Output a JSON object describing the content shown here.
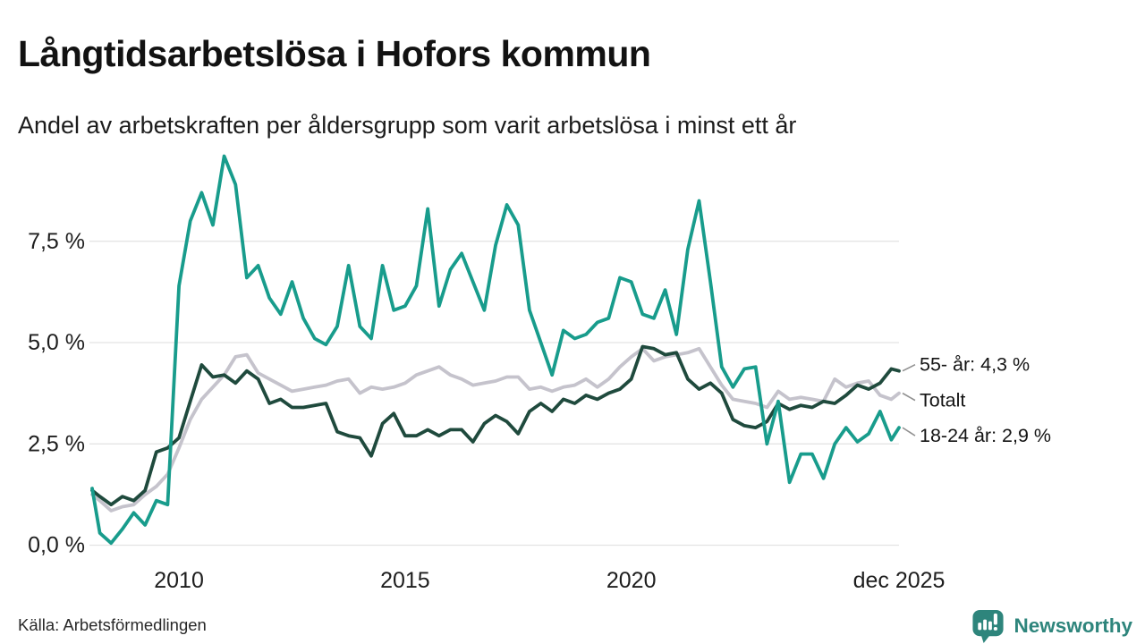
{
  "chart_data": {
    "type": "line",
    "title": "Långtidsarbetslösa i Hofors kommun",
    "subtitle": "Andel av arbetskraften per åldersgrupp som varit arbetslösa i minst ett år",
    "xlabel": "",
    "ylabel": "",
    "grid": true,
    "legend_position": "end-of-line-labels-right",
    "xlim": [
      2008.08,
      2025.92
    ],
    "ylim": [
      0,
      9.9
    ],
    "y_ticks": [
      {
        "value": 0,
        "label": "0,0 %"
      },
      {
        "value": 2.5,
        "label": "2,5 %"
      },
      {
        "value": 5,
        "label": "5,0 %"
      },
      {
        "value": 7.5,
        "label": "7,5 %"
      }
    ],
    "x_ticks": [
      {
        "pos": 2010,
        "label": "2010"
      },
      {
        "pos": 2015,
        "label": "2015"
      },
      {
        "pos": 2020,
        "label": "2020"
      },
      {
        "pos": 2025.92,
        "label": "dec 2025"
      }
    ],
    "x": [
      2008.08,
      2008.25,
      2008.5,
      2008.75,
      2009,
      2009.25,
      2009.5,
      2009.75,
      2010,
      2010.25,
      2010.5,
      2010.75,
      2011,
      2011.25,
      2011.5,
      2011.75,
      2012,
      2012.25,
      2012.5,
      2012.75,
      2013,
      2013.25,
      2013.5,
      2013.75,
      2014,
      2014.25,
      2014.5,
      2014.75,
      2015,
      2015.25,
      2015.5,
      2015.75,
      2016,
      2016.25,
      2016.5,
      2016.75,
      2017,
      2017.25,
      2017.5,
      2017.75,
      2018,
      2018.25,
      2018.5,
      2018.75,
      2019,
      2019.25,
      2019.5,
      2019.75,
      2020,
      2020.25,
      2020.5,
      2020.75,
      2021,
      2021.25,
      2021.5,
      2021.75,
      2022,
      2022.25,
      2022.5,
      2022.75,
      2023,
      2023.25,
      2023.5,
      2023.75,
      2024,
      2024.25,
      2024.5,
      2024.75,
      2025,
      2025.25,
      2025.5,
      2025.75,
      2025.92
    ],
    "series": [
      {
        "name": "Totalt",
        "end_label": "Totalt",
        "end_value": 3.75,
        "color": "#c5c3cc",
        "values": [
          1.25,
          1.1,
          0.85,
          0.95,
          1.0,
          1.25,
          1.45,
          1.75,
          2.4,
          3.1,
          3.6,
          3.9,
          4.2,
          4.65,
          4.7,
          4.25,
          4.1,
          3.95,
          3.8,
          3.85,
          3.9,
          3.95,
          4.05,
          4.1,
          3.75,
          3.9,
          3.85,
          3.9,
          4.0,
          4.2,
          4.3,
          4.4,
          4.2,
          4.1,
          3.95,
          4.0,
          4.05,
          4.15,
          4.15,
          3.85,
          3.9,
          3.8,
          3.9,
          3.95,
          4.1,
          3.9,
          4.1,
          4.4,
          4.65,
          4.85,
          4.55,
          4.65,
          4.7,
          4.75,
          4.85,
          4.4,
          3.95,
          3.6,
          3.55,
          3.5,
          3.4,
          3.8,
          3.6,
          3.65,
          3.6,
          3.55,
          4.1,
          3.9,
          4.0,
          4.05,
          3.7,
          3.6,
          3.75
        ]
      },
      {
        "name": "55- år",
        "end_label": "55- år: 4,3 %",
        "end_value": 4.3,
        "color": "#1f4a3d",
        "values": [
          1.35,
          1.2,
          1.0,
          1.2,
          1.1,
          1.35,
          2.3,
          2.4,
          2.65,
          3.55,
          4.45,
          4.15,
          4.2,
          4.0,
          4.3,
          4.1,
          3.5,
          3.6,
          3.4,
          3.4,
          3.45,
          3.5,
          2.8,
          2.7,
          2.65,
          2.2,
          3.0,
          3.25,
          2.7,
          2.7,
          2.85,
          2.7,
          2.85,
          2.85,
          2.55,
          3.0,
          3.2,
          3.05,
          2.75,
          3.3,
          3.5,
          3.3,
          3.6,
          3.5,
          3.7,
          3.6,
          3.75,
          3.85,
          4.1,
          4.9,
          4.85,
          4.7,
          4.75,
          4.1,
          3.85,
          4.0,
          3.75,
          3.1,
          2.95,
          2.9,
          3.05,
          3.5,
          3.35,
          3.45,
          3.4,
          3.55,
          3.5,
          3.7,
          3.95,
          3.85,
          4.0,
          4.35,
          4.3
        ]
      },
      {
        "name": "18-24 år",
        "end_label": "18-24 år: 2,9 %",
        "end_value": 2.9,
        "color": "#189c8c",
        "values": [
          1.4,
          0.3,
          0.05,
          0.4,
          0.8,
          0.5,
          1.1,
          1.0,
          6.4,
          8.0,
          8.7,
          7.9,
          9.6,
          8.9,
          6.6,
          6.9,
          6.1,
          5.7,
          6.5,
          5.6,
          5.1,
          4.95,
          5.4,
          6.9,
          5.4,
          5.1,
          6.9,
          5.8,
          5.9,
          6.4,
          8.3,
          5.9,
          6.8,
          7.2,
          6.5,
          5.8,
          7.4,
          8.4,
          7.9,
          5.8,
          5.0,
          4.2,
          5.3,
          5.1,
          5.2,
          5.5,
          5.6,
          6.6,
          6.5,
          5.7,
          5.6,
          6.3,
          5.2,
          7.3,
          8.5,
          6.5,
          4.4,
          3.9,
          4.35,
          4.4,
          2.5,
          3.55,
          1.55,
          2.25,
          2.25,
          1.65,
          2.5,
          2.9,
          2.55,
          2.75,
          3.3,
          2.6,
          2.9
        ]
      }
    ]
  },
  "footer": {
    "source": "Källa: Arbetsförmedlingen",
    "brand": "Newsworthy"
  },
  "palette": {
    "brand_teal": "#2e857c",
    "grid_line": "#e3e3e3",
    "axis_text": "#1e1e1e",
    "label_text": "#141414",
    "connector_gray": "#909090"
  }
}
